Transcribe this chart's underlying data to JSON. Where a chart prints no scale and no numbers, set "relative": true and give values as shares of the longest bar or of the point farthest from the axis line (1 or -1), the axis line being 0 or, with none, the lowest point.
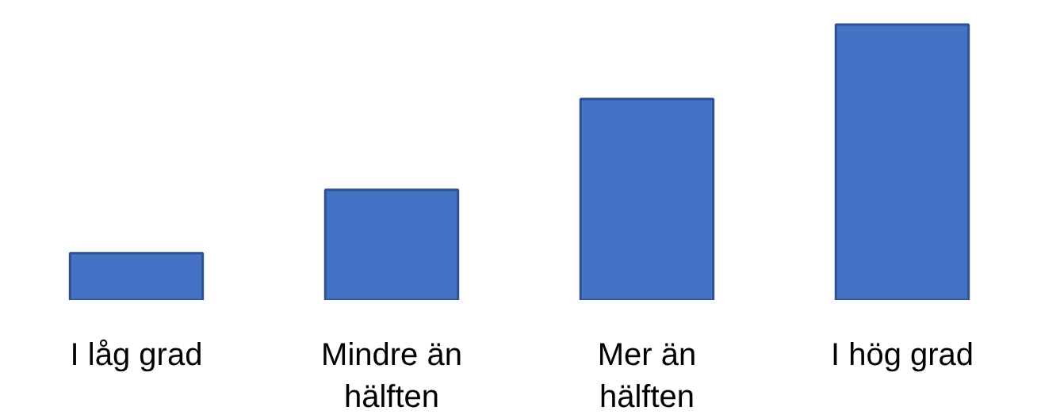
{
  "chart_data": {
    "type": "bar",
    "relative": true,
    "categories": [
      "I låg grad",
      "Mindre än\nhälften",
      "Mer än\nhälften",
      "I hög grad"
    ],
    "values": [
      0.17,
      0.4,
      0.73,
      1
    ],
    "color": "#4472c4",
    "grid": false
  }
}
